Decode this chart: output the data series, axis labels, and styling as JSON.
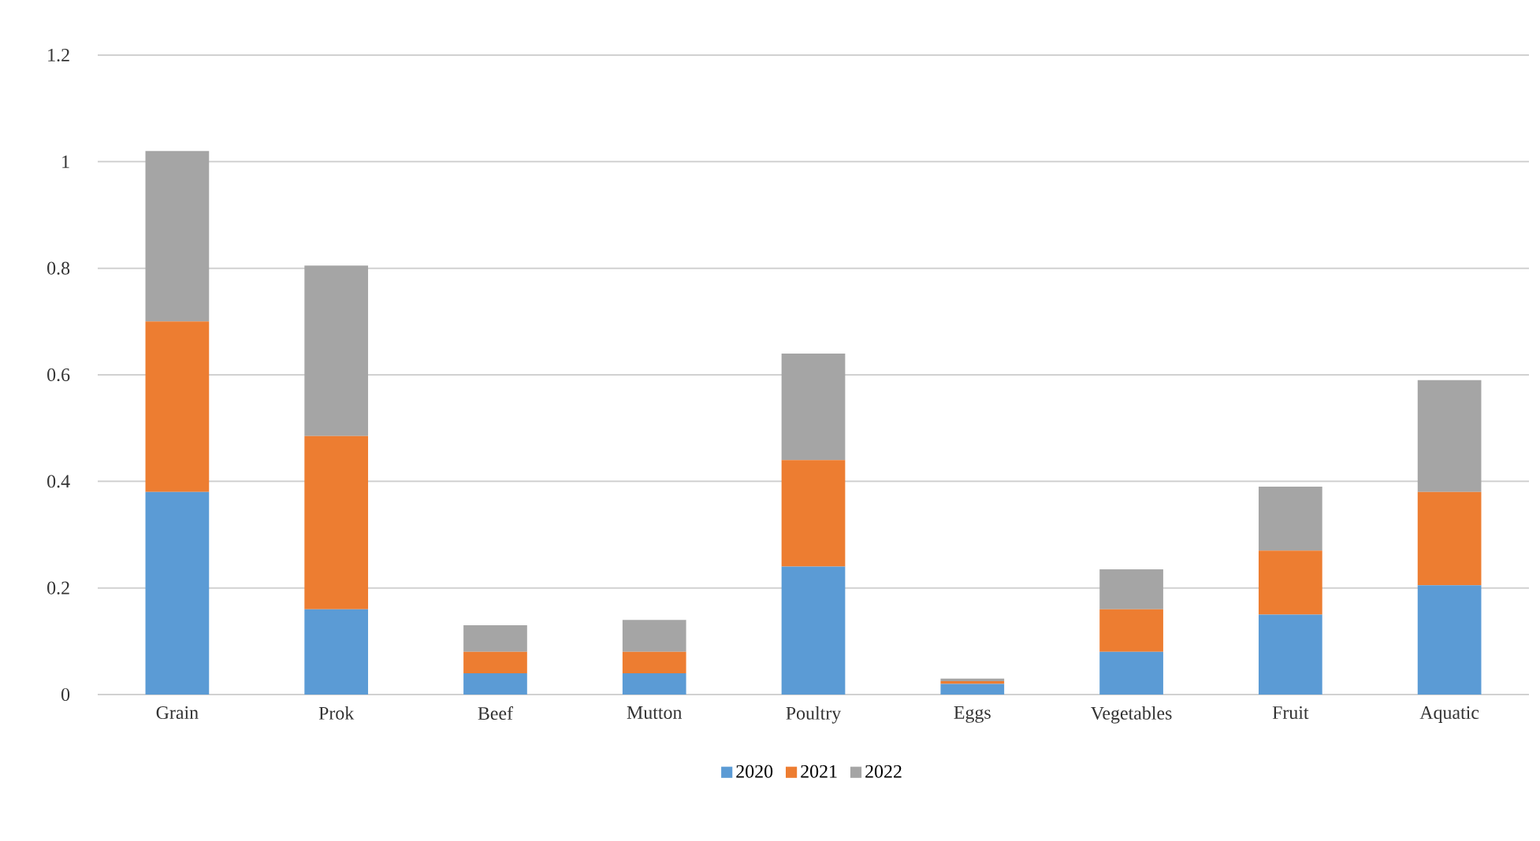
{
  "chart_data": {
    "type": "bar",
    "stacked": true,
    "categories": [
      "Grain",
      "Prok",
      "Beef",
      "Mutton",
      "Poultry",
      "Eggs",
      "Vegetables",
      "Fruit",
      "Aquatic"
    ],
    "series": [
      {
        "name": "2020",
        "color": "#5b9bd5",
        "values": [
          0.38,
          0.16,
          0.04,
          0.04,
          0.24,
          0.02,
          0.08,
          0.15,
          0.205
        ]
      },
      {
        "name": "2021",
        "color": "#ed7d31",
        "values": [
          0.32,
          0.325,
          0.04,
          0.04,
          0.2,
          0.005,
          0.08,
          0.12,
          0.175
        ]
      },
      {
        "name": "2022",
        "color": "#a5a5a5",
        "values": [
          0.32,
          0.32,
          0.05,
          0.06,
          0.2,
          0.005,
          0.075,
          0.12,
          0.21
        ]
      }
    ],
    "ylim": [
      0,
      1.2
    ],
    "yticks": [
      0,
      0.2,
      0.4,
      0.6,
      0.8,
      1,
      1.2
    ],
    "grid": "y",
    "legend": "bottom"
  }
}
